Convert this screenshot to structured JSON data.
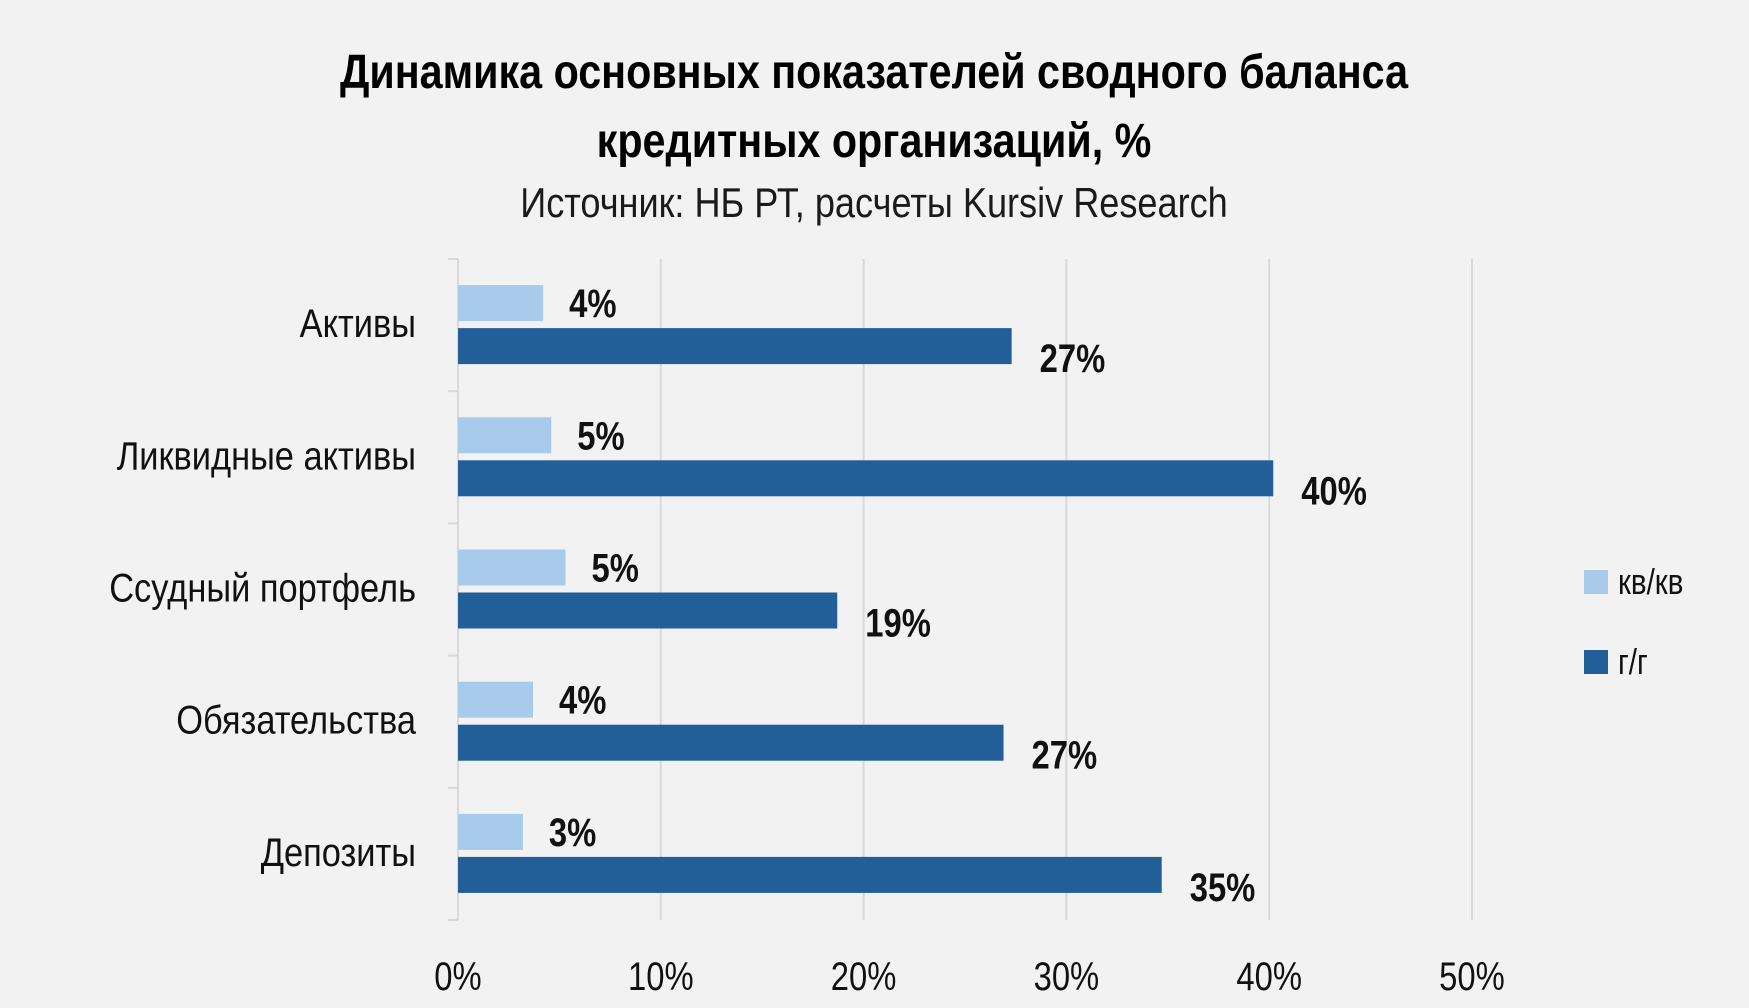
{
  "chart_data": {
    "type": "bar",
    "orientation": "horizontal",
    "title_lines": [
      "Динамика основных показателей сводного баланса",
      "кредитных организаций, %"
    ],
    "subtitle": "Источник: НБ РТ, расчеты Kursiv Research",
    "categories": [
      "Активы",
      "Ликвидные активы",
      "Ссудный портфель",
      "Обязательства",
      "Депозиты"
    ],
    "series": [
      {
        "name": "кв/кв",
        "color": "#a9cbeb",
        "values": [
          4.2,
          4.6,
          5.3,
          3.7,
          3.2
        ],
        "labels": [
          "4%",
          "5%",
          "5%",
          "4%",
          "3%"
        ]
      },
      {
        "name": "г/г",
        "color": "#225e98",
        "values": [
          27.3,
          40.2,
          18.7,
          26.9,
          34.7
        ],
        "labels": [
          "27%",
          "40%",
          "19%",
          "27%",
          "35%"
        ]
      }
    ],
    "xlim": [
      0,
      50
    ],
    "xticks": [
      0,
      10,
      20,
      30,
      40,
      50
    ],
    "xtick_labels": [
      "0%",
      "10%",
      "20%",
      "30%",
      "40%",
      "50%"
    ],
    "grid": true,
    "legend_position": "right"
  }
}
